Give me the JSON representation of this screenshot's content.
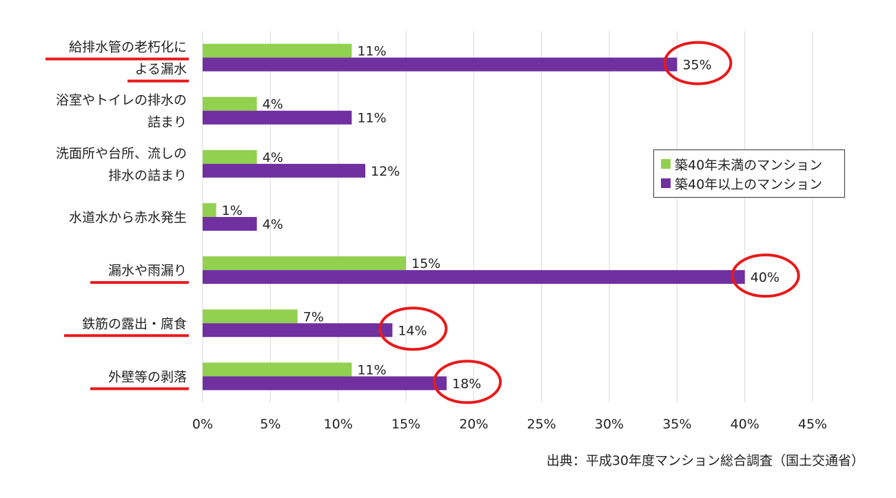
{
  "chart_data": {
    "type": "bar",
    "orientation": "horizontal",
    "categories": [
      [
        "給排水管の老朽化に",
        "よる漏水"
      ],
      [
        "浴室やトイレの排水の",
        "詰まり"
      ],
      [
        "洗面所や台所、流しの",
        "排水の詰まり"
      ],
      [
        "水道水から赤水発生"
      ],
      [
        "漏水や雨漏り"
      ],
      [
        "鉄筋の露出・腐食"
      ],
      [
        "外壁等の剥落"
      ]
    ],
    "series": [
      {
        "name": "築40年未満のマンション",
        "color": "#92d050",
        "values": [
          11,
          4,
          4,
          1,
          15,
          7,
          11
        ]
      },
      {
        "name": "築40年以上のマンション",
        "color": "#7030a0",
        "values": [
          35,
          11,
          12,
          4,
          40,
          14,
          18
        ]
      }
    ],
    "value_suffix": "%",
    "xlim": [
      0,
      45
    ],
    "xticks": [
      "0%",
      "5%",
      "10%",
      "15%",
      "20%",
      "25%",
      "30%",
      "35%",
      "40%",
      "45%"
    ],
    "grid": "vertical",
    "legend_position": "right",
    "highlight_color": "#e8191a",
    "highlighted_categories": [
      0,
      4,
      5,
      6
    ]
  },
  "source": "出典：平成30年度マンション総合調査（国土交通省）"
}
